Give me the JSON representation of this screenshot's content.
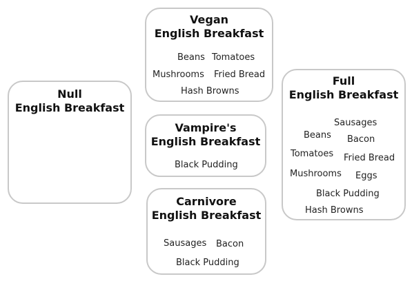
{
  "breakfasts": {
    "null": {
      "title_line1": "Null",
      "title_line2": "English Breakfast",
      "items": []
    },
    "vegan": {
      "title_line1": "Vegan",
      "title_line2": "English Breakfast",
      "items": [
        "Beans",
        "Tomatoes",
        "Mushrooms",
        "Fried Bread",
        "Hash Browns"
      ]
    },
    "vampire": {
      "title_line1": "Vampire's",
      "title_line2": "English Breakfast",
      "items": [
        "Black Pudding"
      ]
    },
    "carnivore": {
      "title_line1": "Carnivore",
      "title_line2": "English Breakfast",
      "items": [
        "Sausages",
        "Bacon",
        "Black Pudding"
      ]
    },
    "full": {
      "title_line1": "Full",
      "title_line2": "English Breakfast",
      "items": [
        "Sausages",
        "Beans",
        "Bacon",
        "Tomatoes",
        "Fried Bread",
        "Mushrooms",
        "Eggs",
        "Black Pudding",
        "Hash Browns"
      ]
    }
  },
  "colors": {
    "card_border": "#c8c8c8",
    "text": "#111111"
  }
}
